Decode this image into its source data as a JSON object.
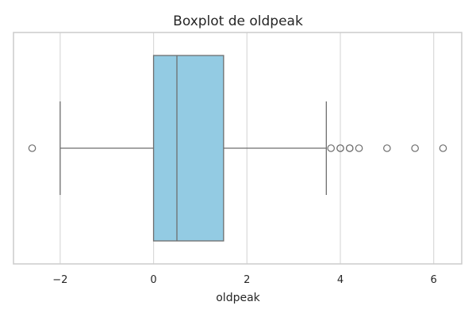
{
  "chart_data": {
    "type": "boxplot",
    "title": "Boxplot de oldpeak",
    "xlabel": "oldpeak",
    "ylabel": "",
    "xlim": [
      -3.0,
      6.6
    ],
    "grid": true,
    "orientation": "horizontal",
    "x_ticks": [
      {
        "value": -2,
        "label": "−2"
      },
      {
        "value": 0,
        "label": "0"
      },
      {
        "value": 2,
        "label": "2"
      },
      {
        "value": 4,
        "label": "4"
      },
      {
        "value": 6,
        "label": "6"
      }
    ],
    "box": {
      "whisker_low": -2.0,
      "q1": 0.0,
      "median": 0.5,
      "q3": 1.5,
      "whisker_high": 3.7
    },
    "outliers": [
      -2.6,
      3.8,
      4.0,
      4.0,
      4.2,
      4.2,
      4.4,
      5.0,
      5.6,
      6.2
    ],
    "colors": {
      "box_fill": "#93CBE3",
      "lines": "#6E6E6E",
      "grid": "#D9D9D9",
      "frame": "#CCCCCC"
    }
  }
}
